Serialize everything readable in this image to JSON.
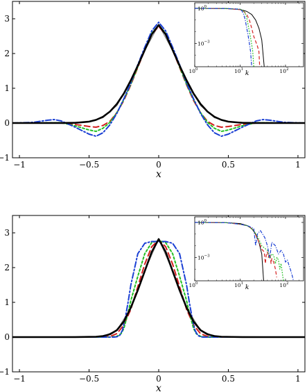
{
  "chart_data": [
    {
      "type": "line",
      "xlabel": "x",
      "ylabel": "",
      "xlim": [
        -1.05,
        1.05
      ],
      "ylim": [
        -1,
        3.5
      ],
      "xticks": [
        "−1",
        "−0.5",
        "0",
        "0.5",
        "1"
      ],
      "yticks": [
        "−1",
        "0",
        "1",
        "2",
        "3"
      ],
      "series": [
        {
          "color": "#000000",
          "style": "solid",
          "x": [
            -1.05,
            -0.9,
            -0.7,
            -0.6,
            -0.5,
            -0.45,
            -0.4,
            -0.35,
            -0.3,
            -0.25,
            -0.2,
            -0.15,
            -0.1,
            -0.05,
            0,
            0.05,
            0.1,
            0.15,
            0.2,
            0.25,
            0.3,
            0.35,
            0.4,
            0.45,
            0.5,
            0.6,
            0.7,
            0.9,
            1.05
          ],
          "y": [
            0,
            0,
            0,
            0.005,
            0.04,
            0.09,
            0.18,
            0.33,
            0.55,
            0.85,
            1.23,
            1.65,
            2.1,
            2.55,
            2.82,
            2.55,
            2.1,
            1.65,
            1.23,
            0.85,
            0.55,
            0.33,
            0.18,
            0.09,
            0.04,
            0.005,
            0,
            0,
            0
          ]
        },
        {
          "color": "#d42020",
          "style": "dashed",
          "x": [
            -1.05,
            -0.9,
            -0.8,
            -0.7,
            -0.6,
            -0.5,
            -0.45,
            -0.4,
            -0.35,
            -0.3,
            -0.25,
            -0.2,
            -0.15,
            -0.1,
            -0.05,
            0,
            0.05,
            0.1,
            0.15,
            0.2,
            0.25,
            0.3,
            0.35,
            0.4,
            0.45,
            0.5,
            0.6,
            0.7,
            0.8,
            0.9,
            1.05
          ],
          "y": [
            0,
            0,
            0,
            0,
            -0.04,
            -0.1,
            -0.12,
            -0.07,
            0.05,
            0.3,
            0.65,
            1.1,
            1.6,
            2.1,
            2.55,
            2.78,
            2.55,
            2.1,
            1.6,
            1.1,
            0.65,
            0.3,
            0.05,
            -0.07,
            -0.12,
            -0.1,
            -0.04,
            0,
            0,
            0,
            0
          ]
        },
        {
          "color": "#22c022",
          "style": "dotted",
          "x": [
            -1.05,
            -0.9,
            -0.8,
            -0.7,
            -0.6,
            -0.5,
            -0.45,
            -0.4,
            -0.35,
            -0.3,
            -0.25,
            -0.2,
            -0.15,
            -0.1,
            -0.05,
            0,
            0.05,
            0.1,
            0.15,
            0.2,
            0.25,
            0.3,
            0.35,
            0.4,
            0.45,
            0.5,
            0.6,
            0.7,
            0.8,
            0.9,
            1.05
          ],
          "y": [
            0,
            0,
            0.005,
            0.01,
            -0.08,
            -0.2,
            -0.24,
            -0.15,
            0.02,
            0.3,
            0.68,
            1.12,
            1.62,
            2.12,
            2.58,
            2.82,
            2.58,
            2.12,
            1.62,
            1.12,
            0.68,
            0.3,
            0.02,
            -0.15,
            -0.24,
            -0.2,
            -0.08,
            0.01,
            0.005,
            0,
            0
          ]
        },
        {
          "color": "#1a3fd4",
          "style": "dashdot",
          "x": [
            -1.05,
            -0.9,
            -0.8,
            -0.75,
            -0.7,
            -0.6,
            -0.5,
            -0.45,
            -0.4,
            -0.35,
            -0.3,
            -0.25,
            -0.2,
            -0.15,
            -0.1,
            -0.05,
            0,
            0.05,
            0.1,
            0.15,
            0.2,
            0.25,
            0.3,
            0.35,
            0.4,
            0.45,
            0.5,
            0.6,
            0.7,
            0.75,
            0.8,
            0.9,
            1.05
          ],
          "y": [
            0,
            0.02,
            0.08,
            0.1,
            0.06,
            -0.12,
            -0.32,
            -0.38,
            -0.28,
            -0.05,
            0.28,
            0.7,
            1.15,
            1.68,
            2.18,
            2.65,
            2.9,
            2.65,
            2.18,
            1.68,
            1.15,
            0.7,
            0.28,
            -0.05,
            -0.28,
            -0.38,
            -0.32,
            -0.12,
            0.06,
            0.1,
            0.08,
            0.02,
            0
          ]
        },
        {
          "color": "#7f7f7f",
          "style": "solid-thin",
          "x": [
            -1.05,
            -0.5,
            -0.4,
            -0.3,
            -0.2,
            -0.1,
            0,
            0.1,
            0.2,
            0.3,
            0.4,
            0.5,
            1.05
          ],
          "y": [
            0,
            0.03,
            0.15,
            0.5,
            1.2,
            2.08,
            2.82,
            2.08,
            1.2,
            0.5,
            0.15,
            0.03,
            0
          ]
        }
      ],
      "inset": {
        "xscale": "log",
        "yscale": "log",
        "xlabel": "k",
        "xlim": [
          1,
          250
        ],
        "ylim": [
          1e-05,
          3
        ],
        "xticks": [
          {
            "base": "10",
            "exp": "0"
          },
          {
            "base": "10",
            "exp": "1"
          },
          {
            "base": "10",
            "exp": "2"
          }
        ],
        "yticks": [
          {
            "base": "10",
            "exp": "0"
          },
          {
            "base": "10",
            "exp": "−3"
          }
        ],
        "series": [
          {
            "color": "#000000",
            "style": "solid",
            "x": [
              1,
              5,
              10,
              14,
              18,
              22,
              26,
              30,
              34
            ],
            "y": [
              1,
              0.95,
              0.8,
              0.55,
              0.3,
              0.1,
              0.02,
              0.002,
              1e-05
            ]
          },
          {
            "color": "#d42020",
            "style": "dashed",
            "x": [
              1,
              5,
              10,
              12,
              14,
              16,
              18,
              20,
              22,
              24,
              26,
              27
            ],
            "y": [
              1,
              0.96,
              0.78,
              0.55,
              0.3,
              0.1,
              0.02,
              0.004,
              0.0015,
              0.0006,
              0.0002,
              1e-05
            ]
          },
          {
            "color": "#22c022",
            "style": "dotted",
            "x": [
              1,
              5,
              10,
              12,
              13,
              14,
              15,
              16,
              17,
              18,
              19,
              20
            ],
            "y": [
              1,
              0.97,
              0.85,
              0.6,
              0.35,
              0.15,
              0.04,
              0.01,
              0.003,
              0.0008,
              0.0002,
              1e-05
            ]
          },
          {
            "color": "#1a3fd4",
            "style": "dashdot",
            "x": [
              1,
              5,
              10,
              11,
              12,
              13,
              14,
              15,
              16,
              17,
              18
            ],
            "y": [
              1,
              0.97,
              0.85,
              0.6,
              0.3,
              0.1,
              0.02,
              0.005,
              0.001,
              0.0002,
              1e-05
            ]
          }
        ]
      }
    },
    {
      "type": "line",
      "xlabel": "x",
      "ylabel": "",
      "xlim": [
        -1.05,
        1.05
      ],
      "ylim": [
        -1,
        3.5
      ],
      "xticks": [
        "−1",
        "−0.5",
        "0",
        "0.5",
        "1"
      ],
      "yticks": [
        "−1",
        "0",
        "1",
        "2",
        "3"
      ],
      "series": [
        {
          "color": "#000000",
          "style": "solid",
          "x": [
            -1.05,
            -0.6,
            -0.45,
            -0.4,
            -0.35,
            -0.3,
            -0.25,
            -0.2,
            -0.15,
            -0.1,
            -0.05,
            0,
            0.05,
            0.1,
            0.15,
            0.2,
            0.25,
            0.3,
            0.35,
            0.4,
            0.45,
            0.6,
            1.05
          ],
          "y": [
            0,
            0,
            0.01,
            0.03,
            0.08,
            0.2,
            0.45,
            0.85,
            1.35,
            1.9,
            2.45,
            2.82,
            2.45,
            1.9,
            1.35,
            0.85,
            0.45,
            0.2,
            0.08,
            0.03,
            0.01,
            0,
            0
          ]
        },
        {
          "color": "#d42020",
          "style": "dashed",
          "x": [
            -1.05,
            -0.6,
            -0.4,
            -0.35,
            -0.3,
            -0.25,
            -0.2,
            -0.15,
            -0.1,
            -0.05,
            0,
            0.05,
            0.1,
            0.15,
            0.2,
            0.25,
            0.3,
            0.35,
            0.4,
            0.6,
            1.05
          ],
          "y": [
            0,
            0,
            0,
            0.02,
            0.1,
            0.35,
            0.8,
            1.45,
            2.1,
            2.6,
            2.8,
            2.6,
            2.1,
            1.45,
            0.8,
            0.35,
            0.1,
            0.02,
            0,
            0,
            0
          ]
        },
        {
          "color": "#22c022",
          "style": "dotted",
          "x": [
            -1.05,
            -0.6,
            -0.35,
            -0.3,
            -0.27,
            -0.25,
            -0.22,
            -0.2,
            -0.15,
            -0.1,
            -0.05,
            0,
            0.05,
            0.1,
            0.15,
            0.2,
            0.22,
            0.25,
            0.27,
            0.3,
            0.35,
            0.6,
            1.05
          ],
          "y": [
            0,
            0,
            0,
            0.02,
            0.1,
            0.25,
            0.7,
            1.05,
            1.75,
            2.4,
            2.72,
            2.78,
            2.72,
            2.4,
            1.75,
            1.05,
            0.7,
            0.25,
            0.1,
            0.02,
            0,
            0,
            0
          ]
        },
        {
          "color": "#1a3fd4",
          "style": "dashdot",
          "x": [
            -1.05,
            -0.6,
            -0.32,
            -0.3,
            -0.28,
            -0.26,
            -0.24,
            -0.22,
            -0.2,
            -0.15,
            -0.1,
            -0.05,
            0,
            0.05,
            0.1,
            0.15,
            0.2,
            0.22,
            0.24,
            0.26,
            0.28,
            0.3,
            0.32,
            0.6,
            1.05
          ],
          "y": [
            0,
            0,
            0,
            0.01,
            0.05,
            0.2,
            0.55,
            1.0,
            1.5,
            2.4,
            2.7,
            2.75,
            2.75,
            2.75,
            2.7,
            2.4,
            1.5,
            1.0,
            0.55,
            0.2,
            0.05,
            0.01,
            0,
            0,
            0
          ]
        },
        {
          "color": "#7f7f7f",
          "style": "solid-thin",
          "x": [
            -1.05,
            -0.4,
            -0.3,
            -0.2,
            -0.1,
            0,
            0.1,
            0.2,
            0.3,
            0.4,
            1.05
          ],
          "y": [
            0,
            0.02,
            0.2,
            0.85,
            1.9,
            2.82,
            1.9,
            0.85,
            0.2,
            0.02,
            0
          ]
        }
      ],
      "inset": {
        "xscale": "log",
        "yscale": "log",
        "xlabel": "k",
        "xlim": [
          1,
          250
        ],
        "ylim": [
          1e-05,
          3
        ],
        "xticks": [
          {
            "base": "10",
            "exp": "0"
          },
          {
            "base": "10",
            "exp": "1"
          },
          {
            "base": "10",
            "exp": "2"
          }
        ],
        "yticks": [
          {
            "base": "10",
            "exp": "0"
          },
          {
            "base": "10",
            "exp": "−3"
          }
        ],
        "series": [
          {
            "color": "#000000",
            "style": "solid",
            "x": [
              1,
              5,
              10,
              14,
              18,
              22,
              26,
              30,
              33
            ],
            "y": [
              1,
              0.95,
              0.8,
              0.55,
              0.3,
              0.1,
              0.02,
              0.002,
              1e-05
            ]
          },
          {
            "color": "#d42020",
            "style": "dashed",
            "x": [
              1,
              5,
              10,
              15,
              20,
              25,
              30,
              34,
              36,
              38,
              40,
              42,
              44,
              46,
              48,
              50,
              55,
              60,
              64
            ],
            "y": [
              1,
              0.95,
              0.7,
              0.5,
              0.2,
              0.03,
              0.005,
              0.003,
              0.0003,
              0.002,
              0.003,
              0.001,
              0.002,
              0.0015,
              0.0003,
              0.0008,
              0.0004,
              0.0001,
              2e-05
            ]
          },
          {
            "color": "#22c022",
            "style": "dotted",
            "x": [
              1,
              5,
              10,
              15,
              20,
              25,
              30,
              40,
              45,
              50,
              55,
              60,
              65,
              70,
              75,
              80,
              85,
              90
            ],
            "y": [
              1,
              0.95,
              0.7,
              0.5,
              0.2,
              0.05,
              0.01,
              0.004,
              0.0008,
              0.002,
              0.0015,
              0.0003,
              0.001,
              0.0006,
              0.0001,
              0.0003,
              5e-05,
              1e-05
            ]
          },
          {
            "color": "#1a3fd4",
            "style": "dashdot",
            "x": [
              1,
              5,
              10,
              15,
              20,
              22,
              24,
              28,
              35,
              40,
              45,
              50,
              60,
              70,
              80,
              90,
              100,
              110,
              120,
              130,
              140,
              150
            ],
            "y": [
              1,
              0.95,
              0.7,
              0.5,
              0.3,
              0.01,
              0.1,
              0.2,
              0.05,
              0.01,
              0.001,
              0.02,
              0.01,
              0.002,
              0.004,
              0.002,
              0.0004,
              0.0006,
              0.0002,
              8e-05,
              3e-05,
              1e-05
            ]
          }
        ]
      }
    }
  ]
}
